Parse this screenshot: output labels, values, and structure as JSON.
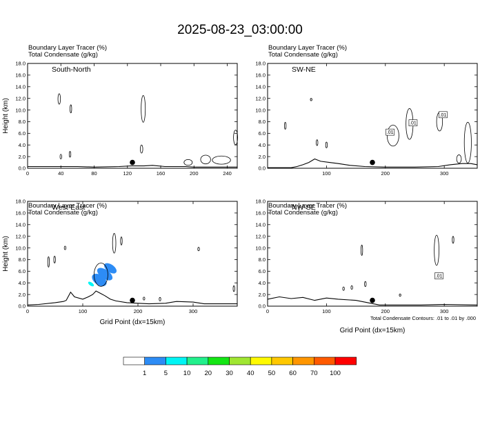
{
  "title": "2025-08-23_03:00:00",
  "note": "Total Condensate Contours: .01 to .01 by .000",
  "colorbar": {
    "levels": [
      "1",
      "5",
      "10",
      "20",
      "30",
      "40",
      "50",
      "60",
      "70",
      "100"
    ],
    "colors": [
      "#ffffff",
      "#2d8cf5",
      "#00f5f5",
      "#22f08c",
      "#14e614",
      "#a0e632",
      "#fffa00",
      "#ffc800",
      "#ff9600",
      "#ff5a00",
      "#ff0000"
    ]
  },
  "chart_data": [
    {
      "type": "contour",
      "name": "South-North",
      "header": [
        "Boundary Layer Tracer   (%)",
        "Total Condensate   (g/kg)"
      ],
      "ylabel": "Height (km)",
      "xlabel": "",
      "xlim": [
        0,
        252
      ],
      "ylim": [
        0,
        18
      ],
      "xticks": [
        0,
        40,
        80,
        120,
        160,
        200,
        240
      ],
      "yticks": [
        "0.0",
        "2.0",
        "4.0",
        "6.0",
        "8.0",
        "10.0",
        "12.0",
        "14.0",
        "16.0",
        "18.0"
      ],
      "marker_x": 126,
      "terrain": [
        [
          0,
          0.3
        ],
        [
          60,
          0.3
        ],
        [
          80,
          0.2
        ],
        [
          110,
          0.3
        ],
        [
          125,
          0.4
        ],
        [
          140,
          0.4
        ],
        [
          150,
          0.5
        ],
        [
          165,
          0.3
        ],
        [
          190,
          0.3
        ],
        [
          200,
          0.2
        ],
        [
          252,
          0.2
        ]
      ],
      "contours": [
        {
          "x": 38,
          "y": 11.9,
          "w": 3,
          "h": 1.8,
          "label": ""
        },
        {
          "x": 52,
          "y": 10.2,
          "w": 2,
          "h": 1.4,
          "label": ""
        },
        {
          "x": 40,
          "y": 2.0,
          "w": 1.2,
          "h": 0.8,
          "label": ""
        },
        {
          "x": 51,
          "y": 2.4,
          "w": 1.6,
          "h": 1.0,
          "label": ""
        },
        {
          "x": 139,
          "y": 10.2,
          "w": 5,
          "h": 4.6,
          "label": ""
        },
        {
          "x": 137,
          "y": 3.3,
          "w": 3,
          "h": 1.4,
          "label": ""
        },
        {
          "x": 233,
          "y": 1.4,
          "w": 22,
          "h": 1.4,
          "label": ""
        },
        {
          "x": 214,
          "y": 1.5,
          "w": 12,
          "h": 1.5,
          "label": ""
        },
        {
          "x": 193,
          "y": 1.0,
          "w": 10,
          "h": 1.0,
          "label": ""
        },
        {
          "x": 250,
          "y": 5.3,
          "w": 5,
          "h": 2.5,
          "label": ""
        }
      ],
      "tracer": []
    },
    {
      "type": "contour",
      "name": "SW-NE",
      "header": [
        "Boundary Layer Tracer   (%)",
        "Total Condensate   (g/kg)"
      ],
      "ylabel": "",
      "xlabel": "",
      "xlim": [
        0,
        356
      ],
      "ylim": [
        0,
        18
      ],
      "xticks": [
        100,
        200,
        300
      ],
      "yticks": [
        "0.0",
        "2.0",
        "4.0",
        "6.0",
        "8.0",
        "10.0",
        "12.0",
        "14.0",
        "16.0",
        "18.0"
      ],
      "marker_x": 178,
      "terrain": [
        [
          0,
          0.1
        ],
        [
          40,
          0.1
        ],
        [
          50,
          0.3
        ],
        [
          60,
          0.6
        ],
        [
          70,
          1.0
        ],
        [
          80,
          1.6
        ],
        [
          90,
          1.2
        ],
        [
          105,
          1.0
        ],
        [
          120,
          0.8
        ],
        [
          140,
          0.5
        ],
        [
          165,
          0.3
        ],
        [
          200,
          0.2
        ],
        [
          250,
          0.2
        ],
        [
          290,
          0.3
        ],
        [
          310,
          0.6
        ],
        [
          330,
          0.8
        ],
        [
          345,
          0.8
        ],
        [
          356,
          0.6
        ]
      ],
      "contours": [
        {
          "x": 241,
          "y": 7.6,
          "w": 12,
          "h": 5.3,
          "label": ".01"
        },
        {
          "x": 292,
          "y": 8.0,
          "w": 10,
          "h": 3.2,
          "label": ".01"
        },
        {
          "x": 30,
          "y": 7.3,
          "w": 2,
          "h": 1.2,
          "label": ""
        },
        {
          "x": 74,
          "y": 11.8,
          "w": 0.5,
          "h": 0.4,
          "label": ""
        },
        {
          "x": 84,
          "y": 4.4,
          "w": 2.5,
          "h": 1.0,
          "label": ""
        },
        {
          "x": 100,
          "y": 4.0,
          "w": 2.0,
          "h": 1.0,
          "label": ""
        },
        {
          "x": 213,
          "y": 5.6,
          "w": 20,
          "h": 3.6,
          "label": ""
        },
        {
          "x": 340,
          "y": 4.4,
          "w": 12,
          "h": 7.0,
          "label": ""
        },
        {
          "x": 325,
          "y": 1.6,
          "w": 8,
          "h": 1.4,
          "label": ""
        }
      ],
      "contour_labels": [
        {
          "x": 208,
          "y": 6.2,
          "text": ".01"
        },
        {
          "x": 247,
          "y": 7.8,
          "text": ".01"
        },
        {
          "x": 298,
          "y": 9.2,
          "text": ".01"
        }
      ],
      "tracer": []
    },
    {
      "type": "contour",
      "name": "West-East",
      "header": [
        "Boundary Layer Tracer   (%)",
        "Total Condensate   (g/kg)"
      ],
      "ylabel": "Height (km)",
      "xlabel": "Grid Point (dx=15km)",
      "xlim": [
        0,
        380
      ],
      "ylim": [
        0,
        18
      ],
      "xticks": [
        0,
        100,
        200,
        300
      ],
      "yticks": [
        "0.0",
        "2.0",
        "4.0",
        "6.0",
        "8.0",
        "10.0",
        "12.0",
        "14.0",
        "16.0",
        "18.0"
      ],
      "marker_x": 190,
      "terrain": [
        [
          0,
          0.2
        ],
        [
          20,
          0.3
        ],
        [
          50,
          0.6
        ],
        [
          65,
          0.8
        ],
        [
          70,
          1.0
        ],
        [
          78,
          2.4
        ],
        [
          85,
          1.6
        ],
        [
          100,
          1.2
        ],
        [
          110,
          1.6
        ],
        [
          118,
          2.0
        ],
        [
          124,
          2.6
        ],
        [
          132,
          2.2
        ],
        [
          140,
          1.8
        ],
        [
          150,
          1.2
        ],
        [
          160,
          0.9
        ],
        [
          180,
          0.6
        ],
        [
          200,
          0.5
        ],
        [
          220,
          0.4
        ],
        [
          250,
          0.5
        ],
        [
          270,
          0.8
        ],
        [
          300,
          0.7
        ],
        [
          320,
          0.4
        ],
        [
          380,
          0.4
        ]
      ],
      "contours": [
        {
          "x": 38,
          "y": 7.6,
          "w": 3,
          "h": 1.8,
          "label": ""
        },
        {
          "x": 49,
          "y": 8.0,
          "w": 2,
          "h": 1.2,
          "label": ""
        },
        {
          "x": 68,
          "y": 10.0,
          "w": 1,
          "h": 0.6,
          "label": ""
        },
        {
          "x": 157,
          "y": 10.8,
          "w": 6,
          "h": 3.4,
          "label": ""
        },
        {
          "x": 170,
          "y": 11.2,
          "w": 2,
          "h": 1.4,
          "label": ""
        },
        {
          "x": 133,
          "y": 5.4,
          "w": 25,
          "h": 4.0,
          "label": ""
        },
        {
          "x": 211,
          "y": 1.3,
          "w": 1.2,
          "h": 0.5,
          "label": ""
        },
        {
          "x": 240,
          "y": 1.2,
          "w": 2.0,
          "h": 0.6,
          "label": ""
        },
        {
          "x": 310,
          "y": 9.8,
          "w": 2.5,
          "h": 0.6,
          "label": ""
        },
        {
          "x": 374,
          "y": 3.0,
          "w": 1.5,
          "h": 1.0,
          "label": ""
        }
      ],
      "tracer": [
        {
          "x": 115,
          "y": 3.8,
          "w": 3,
          "h": 0.9,
          "class": "10"
        },
        {
          "x": 140,
          "y": 5.5,
          "w": 8,
          "h": 2.8,
          "class": "5"
        },
        {
          "x": 130,
          "y": 4.5,
          "w": 9,
          "h": 2.6,
          "class": "5"
        },
        {
          "x": 150,
          "y": 6.5,
          "w": 7,
          "h": 2.2,
          "class": "5"
        }
      ]
    },
    {
      "type": "contour",
      "name": "NW-SE",
      "header": [
        "Boundary Layer Tracer   (%)",
        "Total Condensate   (g/kg)"
      ],
      "ylabel": "",
      "xlabel": "Grid Point (dx=15km)",
      "xlim": [
        0,
        356
      ],
      "ylim": [
        0,
        18
      ],
      "xticks": [
        0,
        100,
        200,
        300
      ],
      "yticks": [
        "0.0",
        "2.0",
        "4.0",
        "6.0",
        "8.0",
        "10.0",
        "12.0",
        "14.0",
        "16.0",
        "18.0"
      ],
      "marker_x": 178,
      "terrain": [
        [
          0,
          1.2
        ],
        [
          20,
          1.6
        ],
        [
          40,
          1.3
        ],
        [
          60,
          1.5
        ],
        [
          80,
          1.0
        ],
        [
          100,
          1.4
        ],
        [
          120,
          1.2
        ],
        [
          150,
          1.0
        ],
        [
          170,
          0.6
        ],
        [
          190,
          0.2
        ],
        [
          260,
          0.2
        ],
        [
          300,
          0.3
        ],
        [
          356,
          0.2
        ]
      ],
      "contours": [
        {
          "x": 287,
          "y": 9.6,
          "w": 8,
          "h": 5.2,
          "label": ".01"
        },
        {
          "x": 160,
          "y": 9.6,
          "w": 2.5,
          "h": 1.8,
          "label": ""
        },
        {
          "x": 129,
          "y": 3.0,
          "w": 1.5,
          "h": 0.6,
          "label": ""
        },
        {
          "x": 143,
          "y": 3.2,
          "w": 1.5,
          "h": 0.6,
          "label": ""
        },
        {
          "x": 166,
          "y": 3.8,
          "w": 2.5,
          "h": 0.9,
          "label": ""
        },
        {
          "x": 225,
          "y": 1.9,
          "w": 1,
          "h": 0.4,
          "label": ""
        },
        {
          "x": 315,
          "y": 11.4,
          "w": 1.5,
          "h": 1.2,
          "label": ""
        }
      ],
      "contour_labels": [
        {
          "x": 291,
          "y": 5.2,
          "text": ".01"
        }
      ],
      "tracer": []
    }
  ]
}
